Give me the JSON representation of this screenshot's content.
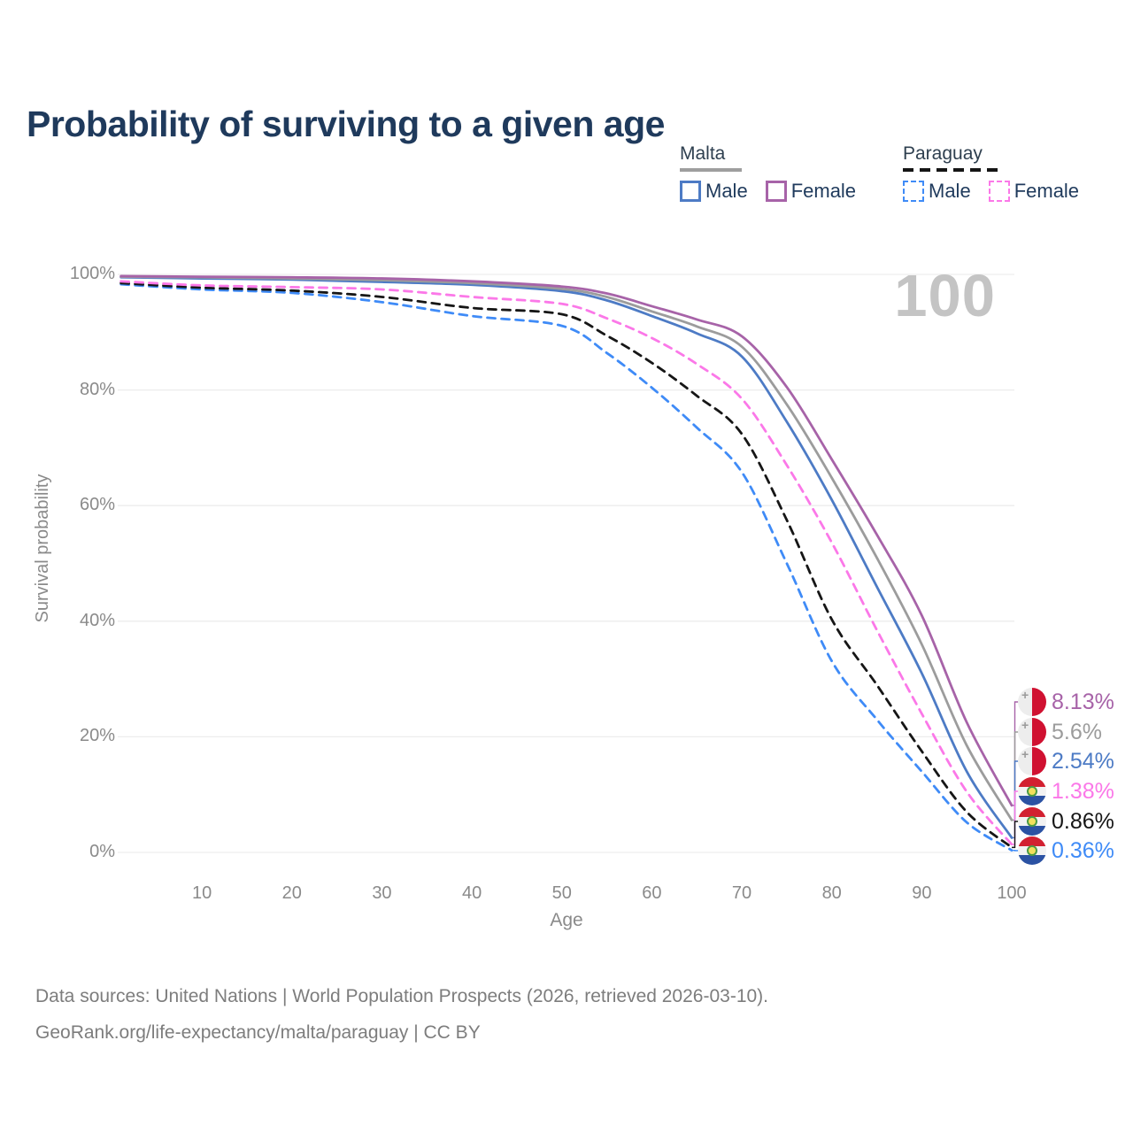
{
  "title": "Probability of surviving to a given age",
  "watermark_age": "100",
  "legend": {
    "groups": [
      {
        "label": "Malta",
        "items": [
          {
            "label": "Male",
            "series": "Malta Male"
          },
          {
            "label": "Female",
            "series": "Malta Female"
          }
        ]
      },
      {
        "label": "Paraguay",
        "items": [
          {
            "label": "Male",
            "series": "Paraguay Male"
          },
          {
            "label": "Female",
            "series": "Paraguay Female"
          }
        ]
      }
    ]
  },
  "end_labels": [
    {
      "value": "8.13%",
      "flag": "malta",
      "series": "Malta Female",
      "color": "#a763a8"
    },
    {
      "value": "5.6%",
      "flag": "malta",
      "series": "Malta",
      "color": "#9c9c9c"
    },
    {
      "value": "2.54%",
      "flag": "malta",
      "series": "Malta Male",
      "color": "#4d7bc5"
    },
    {
      "value": "1.38%",
      "flag": "paraguay",
      "series": "Paraguay Female",
      "color": "#fb78e8"
    },
    {
      "value": "0.86%",
      "flag": "paraguay",
      "series": "Paraguay",
      "color": "#161616"
    },
    {
      "value": "0.36%",
      "flag": "paraguay",
      "series": "Paraguay Male",
      "color": "#3f8bf7"
    }
  ],
  "footer": {
    "line1": "Data sources: United Nations | World Population Prospects (2026, retrieved 2026-03-10).",
    "line2": "GeoRank.org/life-expectancy/malta/paraguay | CC BY"
  },
  "chart_data": {
    "type": "line",
    "title": "Probability of surviving to a given age",
    "xlabel": "Age",
    "ylabel": "Survival probability",
    "y_unit": "%",
    "xlim": [
      0,
      100
    ],
    "ylim": [
      0,
      100
    ],
    "grid": "horizontal",
    "legend_position": "top-right",
    "x_ticks": [
      {
        "label": "10",
        "value": 10
      },
      {
        "label": "20",
        "value": 20
      },
      {
        "label": "30",
        "value": 30
      },
      {
        "label": "40",
        "value": 40
      },
      {
        "label": "50",
        "value": 50
      },
      {
        "label": "60",
        "value": 60
      },
      {
        "label": "70",
        "value": 70
      },
      {
        "label": "80",
        "value": 80
      },
      {
        "label": "90",
        "value": 90
      },
      {
        "label": "100",
        "value": 100
      }
    ],
    "y_ticks": [
      {
        "label": "0%",
        "value": 0
      },
      {
        "label": "20%",
        "value": 20
      },
      {
        "label": "40%",
        "value": 40
      },
      {
        "label": "60%",
        "value": 60
      },
      {
        "label": "80%",
        "value": 80
      },
      {
        "label": "100%",
        "value": 100
      }
    ],
    "x": [
      1,
      10,
      20,
      30,
      40,
      50,
      55,
      60,
      65,
      70,
      75,
      80,
      85,
      90,
      95,
      100
    ],
    "series": [
      {
        "name": "Malta Female",
        "country": "Malta",
        "group": "Female",
        "color": "#a763a8",
        "dash": "solid",
        "values": [
          99.7,
          99.6,
          99.5,
          99.3,
          98.8,
          97.9,
          96.7,
          94.5,
          92.2,
          89.3,
          80.5,
          68.0,
          55.0,
          41.0,
          22.5,
          8.13
        ]
      },
      {
        "name": "Malta",
        "country": "Malta",
        "group": "Both",
        "color": "#9c9c9c",
        "dash": "solid",
        "values": [
          99.6,
          99.5,
          99.3,
          99.0,
          98.5,
          97.5,
          96.1,
          93.6,
          91.0,
          87.5,
          77.5,
          64.8,
          51.0,
          36.0,
          18.5,
          5.6
        ]
      },
      {
        "name": "Malta Male",
        "country": "Malta",
        "group": "Male",
        "color": "#4d7bc5",
        "dash": "solid",
        "values": [
          99.5,
          99.3,
          99.1,
          98.7,
          98.2,
          97.1,
          95.5,
          92.8,
          89.8,
          85.8,
          74.5,
          61.0,
          46.0,
          31.0,
          14.0,
          2.54
        ]
      },
      {
        "name": "Paraguay Female",
        "country": "Paraguay",
        "group": "Female",
        "color": "#fb78e8",
        "dash": "dashed",
        "values": [
          98.8,
          98.1,
          97.8,
          97.4,
          96.1,
          94.9,
          92.4,
          89.0,
          84.5,
          78.5,
          67.0,
          53.6,
          38.5,
          24.0,
          10.5,
          1.38
        ]
      },
      {
        "name": "Paraguay",
        "country": "Paraguay",
        "group": "Both",
        "color": "#161616",
        "dash": "dashed",
        "values": [
          98.5,
          97.7,
          97.2,
          96.1,
          94.2,
          93.1,
          89.4,
          84.7,
          79.0,
          72.4,
          57.5,
          40.3,
          29.0,
          17.5,
          7.0,
          0.86
        ]
      },
      {
        "name": "Paraguay Male",
        "country": "Paraguay",
        "group": "Male",
        "color": "#3f8bf7",
        "dash": "dashed",
        "values": [
          98.3,
          97.4,
          96.8,
          95.2,
          92.8,
          91.1,
          86.4,
          80.4,
          73.5,
          65.8,
          50.0,
          33.1,
          23.0,
          14.0,
          5.2,
          0.36
        ]
      }
    ]
  }
}
